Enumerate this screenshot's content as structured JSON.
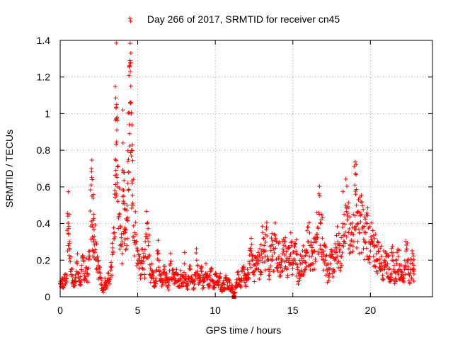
{
  "chart_data": {
    "type": "scatter",
    "title": "Day 266 of 2017, SRMTID for receiver cn45",
    "xlabel": "GPS time / hours",
    "ylabel": "SRMTID / TECUs",
    "xlim": [
      0,
      24
    ],
    "ylim": [
      0,
      1.4
    ],
    "xticks": [
      0,
      5,
      10,
      15,
      20
    ],
    "xtick_labels": [
      "0",
      "5",
      "10",
      "15",
      "20"
    ],
    "yticks": [
      0,
      0.2,
      0.4,
      0.6,
      0.8,
      1,
      1.2,
      1.4
    ],
    "ytick_labels": [
      "0",
      "0.2",
      "0.4",
      "0.6",
      "0.8",
      "1",
      "1.2",
      "1.4"
    ],
    "grid": true,
    "marker": "+",
    "marker_color": "#ff0000",
    "series": [
      {
        "name": "SRMTID",
        "points": [
          [
            0.0,
            0.07
          ],
          [
            0.1,
            0.1
          ],
          [
            0.2,
            0.05
          ],
          [
            0.3,
            0.12
          ],
          [
            0.4,
            0.08
          ],
          [
            0.5,
            0.44
          ],
          [
            0.55,
            0.34
          ],
          [
            0.6,
            0.3
          ],
          [
            0.7,
            0.15
          ],
          [
            0.8,
            0.09
          ],
          [
            0.9,
            0.06
          ],
          [
            1.0,
            0.12
          ],
          [
            1.1,
            0.18
          ],
          [
            1.2,
            0.1
          ],
          [
            1.3,
            0.08
          ],
          [
            1.4,
            0.14
          ],
          [
            1.5,
            0.2
          ],
          [
            1.6,
            0.1
          ],
          [
            1.7,
            0.16
          ],
          [
            1.8,
            0.12
          ],
          [
            1.9,
            0.25
          ],
          [
            2.0,
            0.61
          ],
          [
            2.05,
            0.55
          ],
          [
            2.1,
            0.38
          ],
          [
            2.15,
            0.45
          ],
          [
            2.2,
            0.33
          ],
          [
            2.3,
            0.3
          ],
          [
            2.4,
            0.22
          ],
          [
            2.5,
            0.15
          ],
          [
            2.6,
            0.1
          ],
          [
            2.7,
            0.06
          ],
          [
            2.8,
            0.04
          ],
          [
            2.9,
            0.08
          ],
          [
            3.0,
            0.05
          ],
          [
            3.1,
            0.1
          ],
          [
            3.2,
            0.07
          ],
          [
            3.3,
            0.16
          ],
          [
            3.4,
            0.25
          ],
          [
            3.5,
            0.35
          ],
          [
            3.55,
            0.75
          ],
          [
            3.6,
            1.03
          ],
          [
            3.62,
            0.97
          ],
          [
            3.65,
            0.91
          ],
          [
            3.7,
            0.6
          ],
          [
            3.8,
            0.45
          ],
          [
            3.9,
            0.38
          ],
          [
            4.0,
            0.3
          ],
          [
            4.05,
            0.84
          ],
          [
            4.1,
            0.55
          ],
          [
            4.15,
            0.48
          ],
          [
            4.2,
            0.35
          ],
          [
            4.3,
            0.28
          ],
          [
            4.35,
            0.62
          ],
          [
            4.4,
            0.75
          ],
          [
            4.45,
            0.94
          ],
          [
            4.5,
            1.29
          ],
          [
            4.52,
            1.23
          ],
          [
            4.55,
            1.15
          ],
          [
            4.6,
            0.8
          ],
          [
            4.65,
            0.62
          ],
          [
            4.7,
            0.5
          ],
          [
            4.8,
            0.35
          ],
          [
            4.9,
            0.3
          ],
          [
            5.0,
            0.25
          ],
          [
            5.1,
            0.2
          ],
          [
            5.2,
            0.18
          ],
          [
            5.3,
            0.26
          ],
          [
            5.4,
            0.15
          ],
          [
            5.5,
            0.22
          ],
          [
            5.6,
            0.4
          ],
          [
            5.7,
            0.3
          ],
          [
            5.8,
            0.12
          ],
          [
            5.9,
            0.18
          ],
          [
            6.0,
            0.1
          ],
          [
            6.1,
            0.08
          ],
          [
            6.2,
            0.14
          ],
          [
            6.3,
            0.25
          ],
          [
            6.4,
            0.12
          ],
          [
            6.5,
            0.1
          ],
          [
            6.6,
            0.08
          ],
          [
            6.7,
            0.15
          ],
          [
            6.8,
            0.12
          ],
          [
            6.9,
            0.1
          ],
          [
            7.0,
            0.06
          ],
          [
            7.1,
            0.18
          ],
          [
            7.2,
            0.1
          ],
          [
            7.3,
            0.12
          ],
          [
            7.4,
            0.08
          ],
          [
            7.5,
            0.15
          ],
          [
            7.6,
            0.09
          ],
          [
            7.7,
            0.06
          ],
          [
            7.8,
            0.12
          ],
          [
            7.9,
            0.08
          ],
          [
            8.0,
            0.18
          ],
          [
            8.1,
            0.1
          ],
          [
            8.2,
            0.06
          ],
          [
            8.3,
            0.1
          ],
          [
            8.4,
            0.15
          ],
          [
            8.5,
            0.08
          ],
          [
            8.6,
            0.05
          ],
          [
            8.7,
            0.12
          ],
          [
            8.8,
            0.2
          ],
          [
            8.9,
            0.1
          ],
          [
            9.0,
            0.08
          ],
          [
            9.1,
            0.14
          ],
          [
            9.2,
            0.06
          ],
          [
            9.3,
            0.1
          ],
          [
            9.4,
            0.18
          ],
          [
            9.5,
            0.12
          ],
          [
            9.6,
            0.07
          ],
          [
            9.7,
            0.15
          ],
          [
            9.8,
            0.09
          ],
          [
            9.9,
            0.05
          ],
          [
            10.0,
            0.12
          ],
          [
            10.1,
            0.08
          ],
          [
            10.2,
            0.06
          ],
          [
            10.3,
            0.1
          ],
          [
            10.4,
            0.03
          ],
          [
            10.5,
            0.07
          ],
          [
            10.6,
            0.05
          ],
          [
            10.7,
            0.1
          ],
          [
            10.8,
            0.06
          ],
          [
            10.9,
            0.09
          ],
          [
            11.0,
            0.03
          ],
          [
            11.1,
            0.06
          ],
          [
            11.2,
            0.0
          ],
          [
            11.3,
            0.05
          ],
          [
            11.4,
            0.08
          ],
          [
            11.5,
            0.12
          ],
          [
            11.6,
            0.06
          ],
          [
            11.7,
            0.1
          ],
          [
            11.8,
            0.15
          ],
          [
            11.9,
            0.08
          ],
          [
            12.0,
            0.1
          ],
          [
            12.1,
            0.12
          ],
          [
            12.2,
            0.18
          ],
          [
            12.3,
            0.25
          ],
          [
            12.4,
            0.2
          ],
          [
            12.5,
            0.12
          ],
          [
            12.6,
            0.18
          ],
          [
            12.7,
            0.22
          ],
          [
            12.8,
            0.15
          ],
          [
            12.9,
            0.2
          ],
          [
            13.0,
            0.25
          ],
          [
            13.1,
            0.32
          ],
          [
            13.2,
            0.22
          ],
          [
            13.3,
            0.38
          ],
          [
            13.4,
            0.2
          ],
          [
            13.5,
            0.15
          ],
          [
            13.6,
            0.28
          ],
          [
            13.7,
            0.2
          ],
          [
            13.8,
            0.24
          ],
          [
            13.9,
            0.32
          ],
          [
            14.0,
            0.18
          ],
          [
            14.1,
            0.22
          ],
          [
            14.2,
            0.16
          ],
          [
            14.3,
            0.2
          ],
          [
            14.4,
            0.25
          ],
          [
            14.5,
            0.3
          ],
          [
            14.6,
            0.15
          ],
          [
            14.7,
            0.2
          ],
          [
            14.8,
            0.22
          ],
          [
            14.9,
            0.28
          ],
          [
            15.0,
            0.18
          ],
          [
            15.1,
            0.2
          ],
          [
            15.2,
            0.25
          ],
          [
            15.3,
            0.15
          ],
          [
            15.4,
            0.1
          ],
          [
            15.5,
            0.18
          ],
          [
            15.6,
            0.22
          ],
          [
            15.7,
            0.2
          ],
          [
            15.8,
            0.15
          ],
          [
            15.9,
            0.24
          ],
          [
            16.0,
            0.3
          ],
          [
            16.1,
            0.28
          ],
          [
            16.2,
            0.22
          ],
          [
            16.3,
            0.18
          ],
          [
            16.4,
            0.25
          ],
          [
            16.5,
            0.3
          ],
          [
            16.6,
            0.38
          ],
          [
            16.7,
            0.45
          ],
          [
            16.8,
            0.4
          ],
          [
            16.9,
            0.32
          ],
          [
            17.0,
            0.25
          ],
          [
            17.1,
            0.2
          ],
          [
            17.2,
            0.15
          ],
          [
            17.3,
            0.12
          ],
          [
            17.4,
            0.18
          ],
          [
            17.5,
            0.22
          ],
          [
            17.6,
            0.15
          ],
          [
            17.7,
            0.2
          ],
          [
            17.8,
            0.25
          ],
          [
            17.9,
            0.3
          ],
          [
            18.0,
            0.25
          ],
          [
            18.1,
            0.22
          ],
          [
            18.2,
            0.38
          ],
          [
            18.3,
            0.45
          ],
          [
            18.4,
            0.5
          ],
          [
            18.5,
            0.42
          ],
          [
            18.6,
            0.35
          ],
          [
            18.7,
            0.28
          ],
          [
            18.8,
            0.3
          ],
          [
            18.9,
            0.45
          ],
          [
            19.0,
            0.61
          ],
          [
            19.05,
            0.56
          ],
          [
            19.1,
            0.5
          ],
          [
            19.2,
            0.4
          ],
          [
            19.3,
            0.35
          ],
          [
            19.4,
            0.45
          ],
          [
            19.5,
            0.38
          ],
          [
            19.6,
            0.3
          ],
          [
            19.7,
            0.35
          ],
          [
            19.8,
            0.4
          ],
          [
            19.9,
            0.3
          ],
          [
            20.0,
            0.25
          ],
          [
            20.1,
            0.3
          ],
          [
            20.2,
            0.22
          ],
          [
            20.3,
            0.28
          ],
          [
            20.4,
            0.2
          ],
          [
            20.5,
            0.25
          ],
          [
            20.6,
            0.18
          ],
          [
            20.7,
            0.22
          ],
          [
            20.8,
            0.15
          ],
          [
            20.9,
            0.2
          ],
          [
            21.0,
            0.22
          ],
          [
            21.1,
            0.18
          ],
          [
            21.2,
            0.15
          ],
          [
            21.3,
            0.12
          ],
          [
            21.4,
            0.2
          ],
          [
            21.5,
            0.15
          ],
          [
            21.6,
            0.1
          ],
          [
            21.7,
            0.18
          ],
          [
            21.8,
            0.22
          ],
          [
            21.9,
            0.15
          ],
          [
            22.0,
            0.12
          ],
          [
            22.1,
            0.1
          ],
          [
            22.2,
            0.15
          ],
          [
            22.3,
            0.25
          ],
          [
            22.4,
            0.2
          ],
          [
            22.5,
            0.12
          ],
          [
            22.6,
            0.15
          ],
          [
            22.7,
            0.18
          ],
          [
            22.8,
            0.15
          ]
        ]
      }
    ],
    "notable_points": [
      [
        3.6,
        1.03
      ],
      [
        4.5,
        1.29
      ],
      [
        2.0,
        0.61
      ],
      [
        19.0,
        0.61
      ],
      [
        11.2,
        0.0
      ]
    ]
  }
}
